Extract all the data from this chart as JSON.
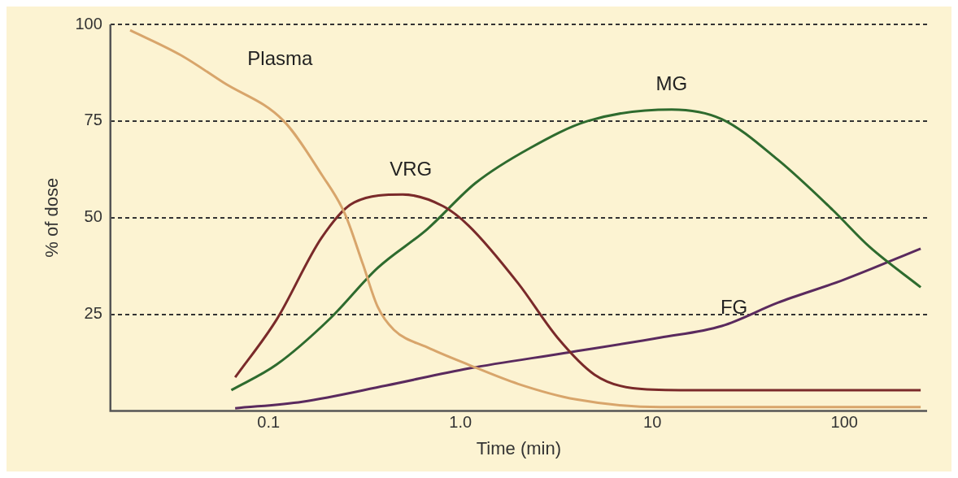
{
  "chart_data": {
    "type": "line",
    "xlabel": "Time (min)",
    "ylabel": "% of dose",
    "log": "x",
    "xlim": [
      0.015,
      270
    ],
    "xticks": [
      {
        "value": 0.1,
        "label": "0.1"
      },
      {
        "value": 1,
        "label": "1.0"
      },
      10,
      100
    ],
    "ylim": [
      0,
      100
    ],
    "yticks": [
      25,
      50,
      75,
      100
    ],
    "grid": "y",
    "legend": false,
    "marker": "none",
    "series": [
      {
        "name": "Plasma",
        "color": "#d8a56b",
        "x": [
          0.019,
          0.035,
          0.058,
          0.12,
          0.19,
          0.25,
          0.31,
          0.37,
          0.45,
          0.67,
          1.1,
          2.0,
          4.0,
          11,
          250
        ],
        "values": [
          98.5,
          92,
          85,
          75,
          61,
          51,
          38,
          27,
          21,
          16.5,
          12,
          7,
          3,
          1,
          1
        ]
      },
      {
        "name": "VRG",
        "color": "#7a2a2a",
        "x": [
          0.067,
          0.11,
          0.19,
          0.28,
          0.5,
          0.81,
          1.1,
          2.0,
          3.2,
          5.0,
          7.9,
          14,
          250
        ],
        "values": [
          8.7,
          23.6,
          45,
          54,
          56,
          53,
          48,
          33,
          19,
          9.4,
          5.9,
          5.4,
          5.4
        ]
      },
      {
        "name": "MG",
        "color": "#2e6b2e",
        "x": [
          0.064,
          0.11,
          0.21,
          0.37,
          0.67,
          1.2,
          2.3,
          4.6,
          12.6,
          23,
          45,
          87,
          135,
          250
        ],
        "values": [
          5.4,
          12,
          24,
          37,
          47,
          59,
          68,
          75,
          78,
          75.5,
          65,
          52,
          42.5,
          32
        ]
      },
      {
        "name": "FG",
        "color": "#5a2a5e",
        "x": [
          0.067,
          0.15,
          0.41,
          1.1,
          3.5,
          11,
          23,
          45,
          100,
          250
        ],
        "values": [
          0.7,
          2.4,
          6.6,
          11,
          15,
          19,
          22,
          28,
          34,
          42
        ]
      }
    ]
  }
}
